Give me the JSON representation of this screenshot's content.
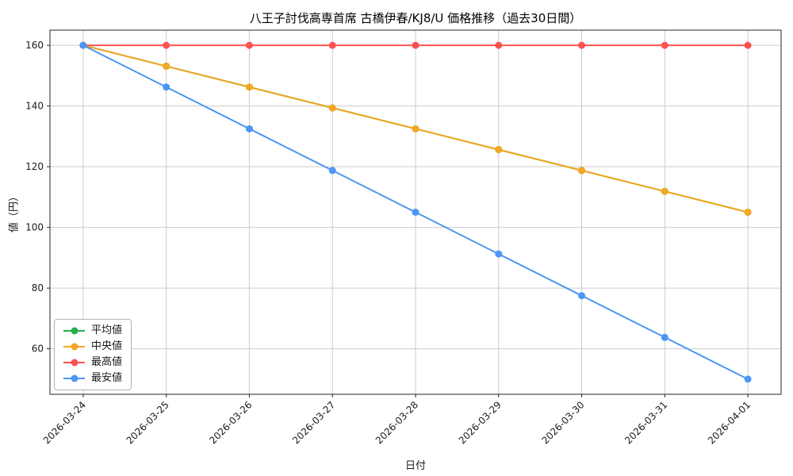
{
  "chart_data": {
    "type": "line",
    "title": "八王子討伐高専首席 古橋伊春/KJ8/U 価格推移（過去30日間）",
    "xlabel": "日付",
    "ylabel": "値（円）",
    "x": [
      "2026-03-24",
      "2026-03-25",
      "2026-03-26",
      "2026-03-27",
      "2026-03-28",
      "2026-03-29",
      "2026-03-30",
      "2026-03-31",
      "2026-04-01"
    ],
    "series": [
      {
        "key": "mean",
        "name": "平均値",
        "color": "#22b14c",
        "values": [
          160,
          153.125,
          146.25,
          139.375,
          132.5,
          125.625,
          118.75,
          111.875,
          105
        ]
      },
      {
        "key": "median",
        "name": "中央値",
        "color": "#f5a623",
        "values": [
          160,
          153.125,
          146.25,
          139.375,
          132.5,
          125.625,
          118.75,
          111.875,
          105
        ]
      },
      {
        "key": "max",
        "name": "最高値",
        "color": "#fa5252",
        "values": [
          160,
          160,
          160,
          160,
          160,
          160,
          160,
          160,
          160
        ]
      },
      {
        "key": "min",
        "name": "最安値",
        "color": "#4e95f5",
        "values": [
          160,
          146.25,
          132.5,
          118.75,
          105,
          91.25,
          77.5,
          63.75,
          50
        ]
      }
    ],
    "yticks": [
      60,
      80,
      100,
      120,
      140,
      160
    ],
    "ylim": [
      45,
      165
    ],
    "grid": true,
    "grid_color": "#cccccc",
    "axis_color": "#262626",
    "legend_position": "lower left"
  }
}
